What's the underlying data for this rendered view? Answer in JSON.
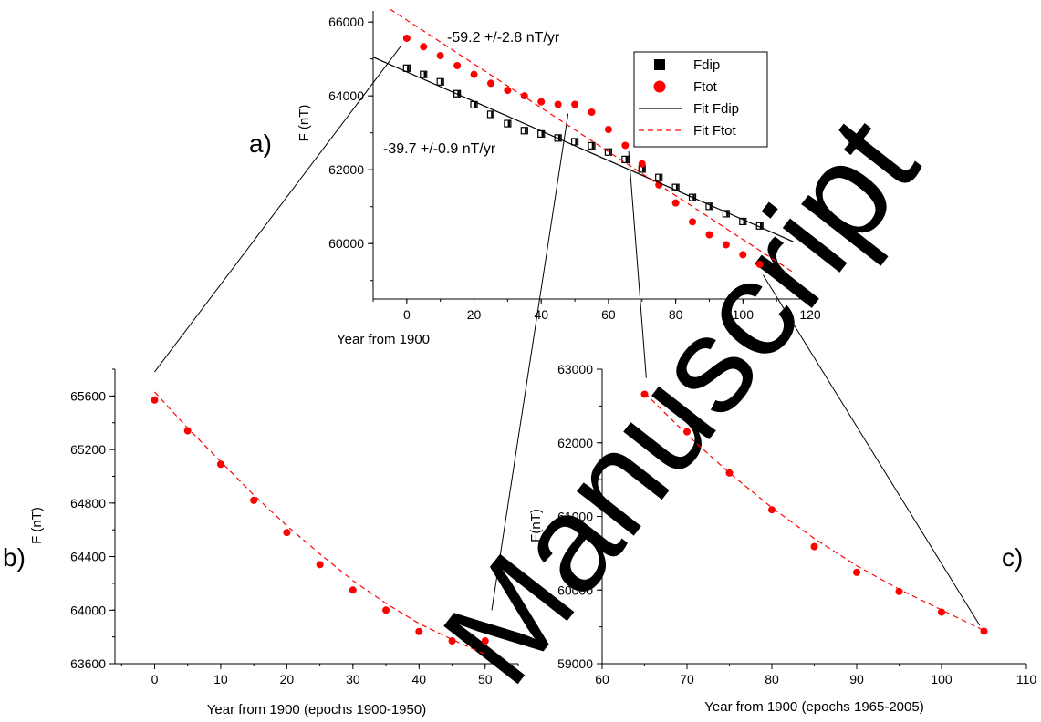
{
  "chart_data": [
    {
      "panel": "a)",
      "type": "scatter",
      "xlabel": "Year from 1900",
      "ylabel": "F (nT)",
      "xlim": [
        -10,
        120
      ],
      "ylim": [
        58500,
        66300
      ],
      "xticks": [
        0,
        20,
        40,
        60,
        80,
        100,
        120
      ],
      "yticks": [
        60000,
        62000,
        64000,
        66000
      ],
      "legend": {
        "position": "top-right",
        "entries": [
          "Fdip",
          "Ftot",
          "Fit Fdip",
          "Fit Ftot"
        ]
      },
      "annotations": [
        "-59.2 +/-2.8  nT/yr",
        "-39.7 +/-0.9  nT/yr"
      ],
      "series": [
        {
          "name": "Fdip",
          "marker": "square",
          "color": "#000000",
          "x": [
            0,
            5,
            10,
            15,
            20,
            25,
            30,
            35,
            40,
            45,
            50,
            55,
            60,
            65,
            70,
            75,
            80,
            85,
            90,
            95,
            100,
            105
          ],
          "y": [
            64750,
            64580,
            64380,
            64060,
            63760,
            63500,
            63250,
            63060,
            62970,
            62860,
            62760,
            62650,
            62480,
            62280,
            62020,
            61790,
            61520,
            61250,
            61010,
            60810,
            60600,
            60480
          ]
        },
        {
          "name": "Ftot",
          "marker": "circle",
          "color": "#ff0000",
          "x": [
            0,
            5,
            10,
            15,
            20,
            25,
            30,
            35,
            40,
            45,
            50,
            55,
            60,
            65,
            70,
            75,
            80,
            85,
            90,
            95,
            100,
            105
          ],
          "y": [
            65560,
            65330,
            65090,
            64820,
            64580,
            64340,
            64150,
            64000,
            63840,
            63770,
            63770,
            63560,
            63090,
            62660,
            62160,
            61590,
            61100,
            60590,
            60240,
            59970,
            59700,
            59440
          ]
        },
        {
          "name": "Fit Fdip",
          "style": "solid",
          "color": "#000000",
          "x": [
            -10,
            115
          ],
          "y": [
            65050,
            60050
          ]
        },
        {
          "name": "Fit Ftot",
          "style": "dashed",
          "color": "#ff0000",
          "x": [
            -5,
            115
          ],
          "y": [
            66350,
            59220
          ]
        }
      ]
    },
    {
      "panel": "b)",
      "type": "scatter",
      "xlabel": "Year from 1900 (epochs 1900-1950)",
      "ylabel": "F (nT)",
      "xlim": [
        -6,
        55
      ],
      "ylim": [
        63600,
        65800
      ],
      "xticks": [
        0,
        10,
        20,
        30,
        40,
        50
      ],
      "yticks": [
        63600,
        64000,
        64400,
        64800,
        65200,
        65600
      ],
      "series": [
        {
          "name": "",
          "marker": "circle",
          "color": "#ff0000",
          "x": [
            0,
            5,
            10,
            15,
            20,
            25,
            30,
            35,
            40,
            45,
            50
          ],
          "y": [
            65570,
            65340,
            65090,
            64820,
            64580,
            64340,
            64150,
            64000,
            63840,
            63770,
            63770
          ]
        },
        {
          "name": "",
          "style": "dashed",
          "color": "#ff0000",
          "x": [
            0,
            5,
            10,
            15,
            20,
            25,
            30,
            35,
            40,
            45,
            50
          ],
          "y": [
            65630,
            65360,
            65110,
            64860,
            64630,
            64420,
            64220,
            64050,
            63900,
            63780,
            63670
          ]
        }
      ]
    },
    {
      "panel": "c)",
      "type": "scatter",
      "xlabel": "Year from 1900 (epochs 1965-2005)",
      "ylabel": "F(nT)",
      "xlim": [
        60,
        110
      ],
      "ylim": [
        59000,
        63000
      ],
      "xticks": [
        60,
        70,
        80,
        90,
        100,
        110
      ],
      "yticks": [
        59000,
        60000,
        61000,
        62000,
        63000
      ],
      "series": [
        {
          "name": "",
          "marker": "circle",
          "color": "#ff0000",
          "x": [
            65,
            70,
            75,
            80,
            85,
            90,
            95,
            100,
            105
          ],
          "y": [
            62660,
            62150,
            61590,
            61090,
            60590,
            60240,
            59980,
            59700,
            59440
          ]
        },
        {
          "name": "",
          "style": "dashed",
          "color": "#ff0000",
          "x": [
            65,
            70,
            75,
            80,
            85,
            90,
            95,
            100,
            105
          ],
          "y": [
            62680,
            62110,
            61590,
            61120,
            60700,
            60330,
            60010,
            59730,
            59450
          ]
        }
      ]
    }
  ],
  "watermark": "Manuscript"
}
